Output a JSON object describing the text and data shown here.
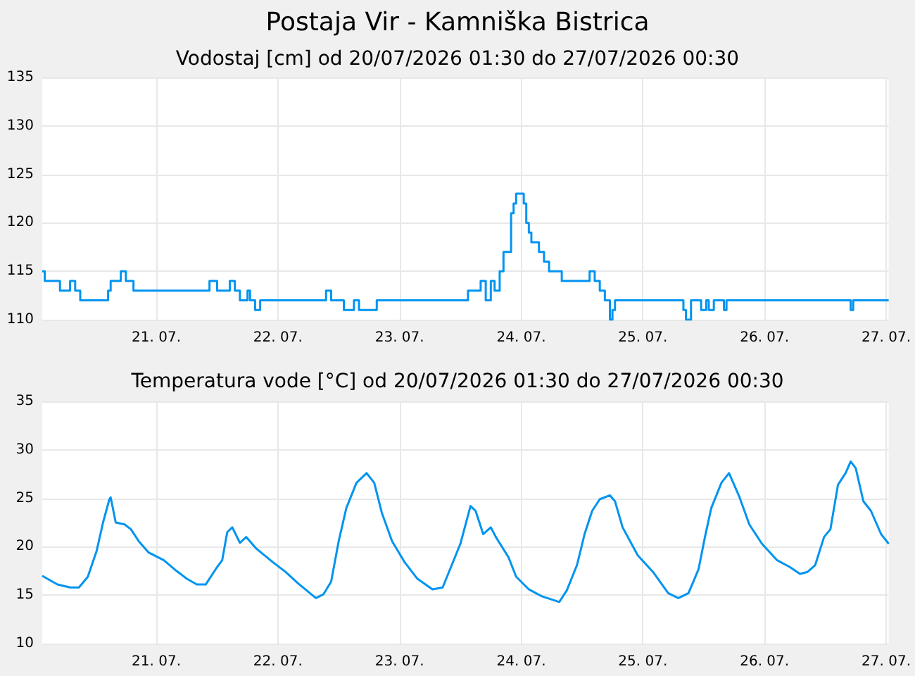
{
  "chart_data": [
    {
      "type": "step",
      "title": "Postaja Vir - Kamniška Bistrica",
      "subtitle": "Vodostaj [cm] od 20/07/2026 01:30 do 27/07/2026 00:30",
      "color": "#0094f0",
      "marker": "none",
      "line_style": "solid",
      "grid": true,
      "x": [
        "2026-07-20T01:30",
        "2026-07-20T02:00",
        "2026-07-20T05:00",
        "2026-07-20T07:00",
        "2026-07-20T08:00",
        "2026-07-20T09:00",
        "2026-07-20T14:30",
        "2026-07-20T15:00",
        "2026-07-20T17:00",
        "2026-07-20T18:00",
        "2026-07-20T19:30",
        "2026-07-21T10:30",
        "2026-07-21T12:00",
        "2026-07-21T14:30",
        "2026-07-21T15:30",
        "2026-07-21T16:30",
        "2026-07-21T18:00",
        "2026-07-21T18:30",
        "2026-07-21T19:30",
        "2026-07-21T20:30",
        "2026-07-22T09:30",
        "2026-07-22T10:30",
        "2026-07-22T13:00",
        "2026-07-22T15:00",
        "2026-07-22T16:00",
        "2026-07-22T19:30",
        "2026-07-23T13:30",
        "2026-07-23T16:00",
        "2026-07-23T17:00",
        "2026-07-23T18:00",
        "2026-07-23T18:45",
        "2026-07-23T19:45",
        "2026-07-23T20:30",
        "2026-07-23T22:00",
        "2026-07-23T22:30",
        "2026-07-23T23:00",
        "2026-07-24T00:30",
        "2026-07-24T01:00",
        "2026-07-24T01:30",
        "2026-07-24T02:00",
        "2026-07-24T03:30",
        "2026-07-24T04:30",
        "2026-07-24T05:30",
        "2026-07-24T08:00",
        "2026-07-24T13:30",
        "2026-07-24T14:30",
        "2026-07-24T15:30",
        "2026-07-24T16:30",
        "2026-07-24T17:30",
        "2026-07-24T18:00",
        "2026-07-24T18:30",
        "2026-07-25T08:00",
        "2026-07-25T08:30",
        "2026-07-25T09:30",
        "2026-07-25T11:30",
        "2026-07-25T12:30",
        "2026-07-25T13:00",
        "2026-07-25T14:00",
        "2026-07-25T16:00",
        "2026-07-25T16:30",
        "2026-07-26T17:00",
        "2026-07-26T17:30",
        "2026-07-27T00:30"
      ],
      "values": [
        115,
        114,
        113,
        114,
        113,
        112,
        113,
        114,
        115,
        114,
        113,
        114,
        113,
        114,
        113,
        112,
        113,
        112,
        111,
        112,
        113,
        112,
        111,
        112,
        111,
        112,
        113,
        114,
        112,
        114,
        113,
        115,
        117,
        121,
        122,
        123,
        122,
        120,
        119,
        118,
        117,
        116,
        115,
        114,
        115,
        114,
        113,
        112,
        110,
        111,
        112,
        111,
        110,
        112,
        111,
        112,
        111,
        112,
        111,
        112,
        111,
        112,
        112
      ],
      "xlim": [
        "2026-07-20T01:30",
        "2026-07-27T00:30"
      ],
      "xticks": [
        {
          "value": "2026-07-21",
          "label": "21. 07."
        },
        {
          "value": "2026-07-22",
          "label": "22. 07."
        },
        {
          "value": "2026-07-23",
          "label": "23. 07."
        },
        {
          "value": "2026-07-24",
          "label": "24. 07."
        },
        {
          "value": "2026-07-25",
          "label": "25. 07."
        },
        {
          "value": "2026-07-26",
          "label": "26. 07."
        },
        {
          "value": "2026-07-27",
          "label": "27. 07."
        }
      ],
      "ylim": [
        110,
        135
      ],
      "yticks": [
        110,
        115,
        120,
        125,
        130,
        135
      ]
    },
    {
      "type": "line",
      "title": "Temperatura vode [°C] od 20/07/2026 01:30 do 27/07/2026 00:30",
      "color": "#0094f0",
      "marker": "none",
      "line_style": "solid",
      "grid": true,
      "x": [
        "2026-07-20T01:30",
        "2026-07-20T04:30",
        "2026-07-20T07:00",
        "2026-07-20T08:45",
        "2026-07-20T10:30",
        "2026-07-20T12:15",
        "2026-07-20T13:30",
        "2026-07-20T14:45",
        "2026-07-20T15:00",
        "2026-07-20T16:00",
        "2026-07-20T17:45",
        "2026-07-20T19:00",
        "2026-07-20T20:30",
        "2026-07-20T22:30",
        "2026-07-21T01:30",
        "2026-07-21T04:00",
        "2026-07-21T06:00",
        "2026-07-21T08:00",
        "2026-07-21T09:45",
        "2026-07-21T12:00",
        "2026-07-21T13:00",
        "2026-07-21T14:00",
        "2026-07-21T15:00",
        "2026-07-21T16:30",
        "2026-07-21T17:45",
        "2026-07-21T19:45",
        "2026-07-21T23:00",
        "2026-07-22T01:30",
        "2026-07-22T04:00",
        "2026-07-22T07:30",
        "2026-07-22T09:00",
        "2026-07-22T10:30",
        "2026-07-22T12:00",
        "2026-07-22T13:30",
        "2026-07-22T15:30",
        "2026-07-22T17:30",
        "2026-07-22T19:00",
        "2026-07-22T20:30",
        "2026-07-22T22:30",
        "2026-07-23T01:00",
        "2026-07-23T03:30",
        "2026-07-23T06:30",
        "2026-07-23T08:30",
        "2026-07-23T12:00",
        "2026-07-23T14:00",
        "2026-07-23T15:00",
        "2026-07-23T16:30",
        "2026-07-23T18:00",
        "2026-07-23T19:00",
        "2026-07-23T21:30",
        "2026-07-23T23:00",
        "2026-07-24T01:30",
        "2026-07-24T04:00",
        "2026-07-24T07:30",
        "2026-07-24T09:00",
        "2026-07-24T11:00",
        "2026-07-24T12:30",
        "2026-07-24T14:00",
        "2026-07-24T15:30",
        "2026-07-24T17:30",
        "2026-07-24T18:30",
        "2026-07-24T20:00",
        "2026-07-24T23:00",
        "2026-07-25T02:00",
        "2026-07-25T05:00",
        "2026-07-25T07:00",
        "2026-07-25T09:00",
        "2026-07-25T11:00",
        "2026-07-25T12:15",
        "2026-07-25T13:30",
        "2026-07-25T15:30",
        "2026-07-25T17:00",
        "2026-07-25T19:00",
        "2026-07-25T21:00",
        "2026-07-25T23:30",
        "2026-07-26T02:30",
        "2026-07-26T05:00",
        "2026-07-26T07:00",
        "2026-07-26T08:30",
        "2026-07-26T10:00",
        "2026-07-26T11:45",
        "2026-07-26T13:00",
        "2026-07-26T14:30",
        "2026-07-26T16:00",
        "2026-07-26T17:00",
        "2026-07-26T18:00",
        "2026-07-26T19:30",
        "2026-07-26T21:00",
        "2026-07-26T23:00",
        "2026-07-27T00:30"
      ],
      "values": [
        17.0,
        16.1,
        15.8,
        15.8,
        16.9,
        19.6,
        22.5,
        24.9,
        25.1,
        22.5,
        22.3,
        21.8,
        20.6,
        19.4,
        18.6,
        17.5,
        16.7,
        16.1,
        16.1,
        17.9,
        18.6,
        21.5,
        22.0,
        20.4,
        21.0,
        19.8,
        18.4,
        17.4,
        16.2,
        14.7,
        15.1,
        16.4,
        20.6,
        24.0,
        26.6,
        27.6,
        26.6,
        23.5,
        20.6,
        18.4,
        16.7,
        15.6,
        15.8,
        20.3,
        24.2,
        23.7,
        21.3,
        22.0,
        21.0,
        18.9,
        16.9,
        15.6,
        14.9,
        14.3,
        15.5,
        18.1,
        21.3,
        23.7,
        24.9,
        25.3,
        24.7,
        22.0,
        19.1,
        17.4,
        15.2,
        14.7,
        15.2,
        17.7,
        21.0,
        24.0,
        26.6,
        27.6,
        25.2,
        22.3,
        20.3,
        18.6,
        17.9,
        17.2,
        17.4,
        18.1,
        21.0,
        21.8,
        26.4,
        27.6,
        28.8,
        28.1,
        24.7,
        23.7,
        21.3,
        20.3
      ],
      "xlim": [
        "2026-07-20T01:30",
        "2026-07-27T00:30"
      ],
      "xticks": [
        {
          "value": "2026-07-21",
          "label": "21. 07."
        },
        {
          "value": "2026-07-22",
          "label": "22. 07."
        },
        {
          "value": "2026-07-23",
          "label": "23. 07."
        },
        {
          "value": "2026-07-24",
          "label": "24. 07."
        },
        {
          "value": "2026-07-25",
          "label": "25. 07."
        },
        {
          "value": "2026-07-26",
          "label": "26. 07."
        },
        {
          "value": "2026-07-27",
          "label": "27. 07."
        }
      ],
      "ylim": [
        10,
        35
      ],
      "yticks": [
        10,
        15,
        20,
        25,
        30,
        35
      ]
    }
  ]
}
